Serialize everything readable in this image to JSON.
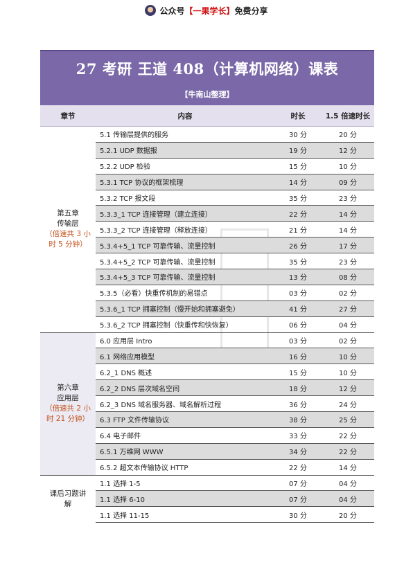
{
  "header": {
    "prefix": "公众号",
    "brand": "【一果学长】",
    "suffix": "免费分享"
  },
  "banner": {
    "title": "27 考研 王道 408（计算机网络）课表",
    "subtitle": "【牛南山整理】"
  },
  "table": {
    "columns": [
      "章节",
      "内容",
      "时长",
      "1.5 倍速时长"
    ],
    "chapters": [
      {
        "name_lines": [
          "第五章",
          "传输层"
        ],
        "note_lines": [
          "（倍速共 3 小",
          "时 5 分钟）"
        ],
        "rows": [
          {
            "content": "5.1 传输层提供的服务",
            "duration": "30 分",
            "speed": "20 分"
          },
          {
            "content": "5.2.1 UDP 数据报",
            "duration": "19 分",
            "speed": "12 分"
          },
          {
            "content": "5.2.2 UDP 检验",
            "duration": "15 分",
            "speed": "10 分"
          },
          {
            "content": "5.3.1 TCP 协议的框架梳理",
            "duration": "14 分",
            "speed": "09 分"
          },
          {
            "content": "5.3.2 TCP 报文段",
            "duration": "35 分",
            "speed": "23 分"
          },
          {
            "content": "5.3.3_1 TCP 连接管理（建立连接）",
            "duration": "22 分",
            "speed": "14 分"
          },
          {
            "content": "5.3.3_2 TCP 连接管理（释放连接）",
            "duration": "21 分",
            "speed": "14 分"
          },
          {
            "content": "5.3.4+5_1 TCP 可靠传输、流量控制",
            "duration": "26 分",
            "speed": "17 分"
          },
          {
            "content": "5.3.4+5_2 TCP 可靠传输、流量控制",
            "duration": "35 分",
            "speed": "23 分"
          },
          {
            "content": "5.3.4+5_3 TCP 可靠传输、流量控制",
            "duration": "13 分",
            "speed": "08 分"
          },
          {
            "content": "5.3.5（必看）快重传机制的易错点",
            "duration": "03 分",
            "speed": "02 分"
          },
          {
            "content": "5.3.6_1 TCP 拥塞控制（慢开始和拥塞避免）",
            "duration": "41 分",
            "speed": "27 分"
          },
          {
            "content": "5.3.6_2 TCP 拥塞控制（快重传和快恢复）",
            "duration": "06 分",
            "speed": "04 分"
          }
        ]
      },
      {
        "name_lines": [
          "第六章",
          "应用层"
        ],
        "note_lines": [
          "（倍速共 2 小",
          "时 21 分钟）"
        ],
        "rows": [
          {
            "content": "6.0 应用层 Intro",
            "duration": "03 分",
            "speed": "02 分"
          },
          {
            "content": "6.1 网络应用模型",
            "duration": "16 分",
            "speed": "10 分"
          },
          {
            "content": "6.2_1 DNS 概述",
            "duration": "15 分",
            "speed": "10 分"
          },
          {
            "content": "6.2_2 DNS 层次域名空间",
            "duration": "18 分",
            "speed": "12 分"
          },
          {
            "content": "6.2_3 DNS 域名服务器、域名解析过程",
            "duration": "36 分",
            "speed": "24 分"
          },
          {
            "content": "6.3 FTP 文件传输协议",
            "duration": "38 分",
            "speed": "25 分"
          },
          {
            "content": "6.4 电子邮件",
            "duration": "33 分",
            "speed": "22 分"
          },
          {
            "content": "6.5.1 万维网 WWW",
            "duration": "34 分",
            "speed": "22 分"
          },
          {
            "content": "6.5.2 超文本传输协议 HTTP",
            "duration": "22 分",
            "speed": "14 分"
          }
        ]
      },
      {
        "name_lines": [
          "课后习题讲",
          "解"
        ],
        "note_lines": [],
        "rows": [
          {
            "content": "1.1 选择 1-5",
            "duration": "07 分",
            "speed": "04 分"
          },
          {
            "content": "1.1 选择 6-10",
            "duration": "07 分",
            "speed": "04 分"
          },
          {
            "content": "1.1 选择 11-15",
            "duration": "30 分",
            "speed": "20 分"
          }
        ]
      }
    ]
  }
}
